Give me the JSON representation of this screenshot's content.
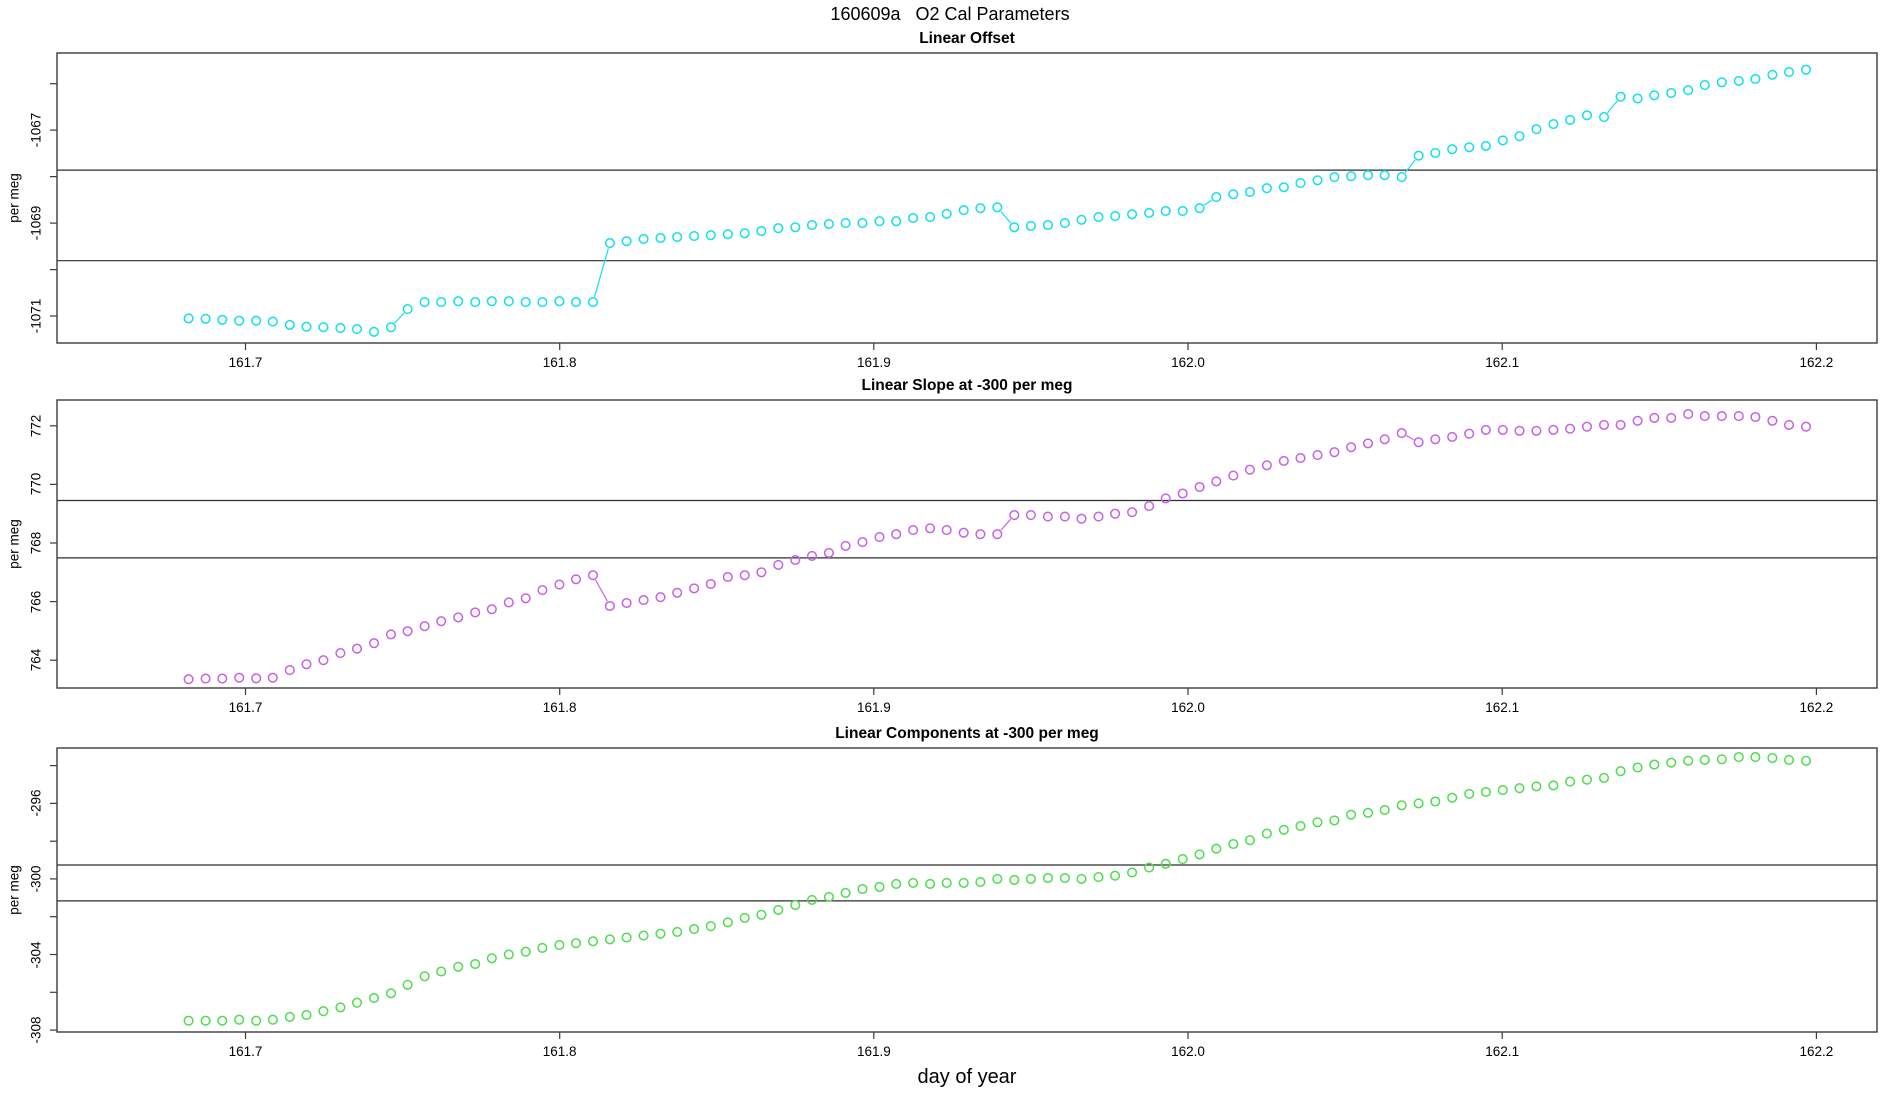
{
  "title": "160609a   O2 Cal Parameters",
  "chart_data": {
    "type": "scatter",
    "xlabel": "day of year",
    "x_tick_values": [
      161.7,
      161.8,
      161.9,
      162.0,
      162.1,
      162.2
    ],
    "x_tick_labels": [
      "161.7",
      "161.8",
      "161.9",
      "162.0",
      "162.1",
      "162.2"
    ],
    "xlim": [
      161.64,
      162.2193
    ],
    "x": [
      161.6819,
      161.6873,
      161.6926,
      161.698,
      161.7034,
      161.7087,
      161.7141,
      161.7194,
      161.7248,
      161.7302,
      161.7355,
      161.7409,
      161.7463,
      161.7516,
      161.757,
      161.7623,
      161.7677,
      161.7731,
      161.7784,
      161.7838,
      161.7892,
      161.7945,
      161.7999,
      161.8052,
      161.8106,
      161.816,
      161.8213,
      161.8267,
      161.8321,
      161.8374,
      161.8428,
      161.8481,
      161.8535,
      161.8589,
      161.8642,
      161.8696,
      161.875,
      161.8803,
      161.8857,
      161.891,
      161.8964,
      161.9018,
      161.9071,
      161.9125,
      161.9179,
      161.9232,
      161.9286,
      161.9339,
      161.9393,
      161.9447,
      161.95,
      161.9554,
      161.9608,
      161.9661,
      161.9715,
      161.9768,
      161.9822,
      161.9876,
      161.9929,
      161.9983,
      162.0037,
      162.009,
      162.0144,
      162.0197,
      162.0251,
      162.0305,
      162.0358,
      162.0412,
      162.0466,
      162.0519,
      162.0573,
      162.0626,
      162.068,
      162.0734,
      162.0787,
      162.0841,
      162.0895,
      162.0948,
      162.1002,
      162.1055,
      162.1109,
      162.1163,
      162.1216,
      162.127,
      162.1324,
      162.1377,
      162.1431,
      162.1484,
      162.1538,
      162.1592,
      162.1645,
      162.1699,
      162.1753,
      162.1806,
      162.186,
      162.1913,
      162.1967
    ],
    "panels": [
      {
        "title": "Linear Offset",
        "ylabel": "per meg",
        "color": "#10dff0",
        "ylim": [
          -1071.58,
          -1065.34
        ],
        "ytick_values": [
          -1066,
          -1067,
          -1068,
          -1069,
          -1070,
          -1071
        ],
        "ytick_labels": [
          "",
          "-1067",
          "",
          "-1069",
          "",
          "-1071"
        ],
        "hlines": [
          -1067.86,
          -1069.81
        ],
        "values": [
          -1071.05,
          -1071.06,
          -1071.08,
          -1071.1,
          -1071.1,
          -1071.12,
          -1071.19,
          -1071.23,
          -1071.24,
          -1071.26,
          -1071.28,
          -1071.34,
          -1071.24,
          -1070.85,
          -1070.7,
          -1070.7,
          -1070.68,
          -1070.7,
          -1070.68,
          -1070.68,
          -1070.7,
          -1070.7,
          -1070.68,
          -1070.7,
          -1070.7,
          -1069.43,
          -1069.39,
          -1069.34,
          -1069.32,
          -1069.3,
          -1069.28,
          -1069.26,
          -1069.24,
          -1069.22,
          -1069.17,
          -1069.11,
          -1069.09,
          -1069.04,
          -1069.02,
          -1069.0,
          -1069.0,
          -1068.96,
          -1068.96,
          -1068.89,
          -1068.87,
          -1068.8,
          -1068.72,
          -1068.68,
          -1068.66,
          -1069.09,
          -1069.06,
          -1069.04,
          -1069.0,
          -1068.93,
          -1068.87,
          -1068.85,
          -1068.81,
          -1068.78,
          -1068.74,
          -1068.74,
          -1068.68,
          -1068.44,
          -1068.38,
          -1068.33,
          -1068.25,
          -1068.23,
          -1068.14,
          -1068.08,
          -1068.01,
          -1067.99,
          -1067.97,
          -1067.97,
          -1068.01,
          -1067.55,
          -1067.49,
          -1067.41,
          -1067.37,
          -1067.34,
          -1067.22,
          -1067.13,
          -1066.98,
          -1066.87,
          -1066.78,
          -1066.68,
          -1066.72,
          -1066.28,
          -1066.32,
          -1066.25,
          -1066.2,
          -1066.14,
          -1066.03,
          -1065.97,
          -1065.94,
          -1065.9,
          -1065.81,
          -1065.75,
          -1065.7
        ]
      },
      {
        "title": "Linear Slope at -300 per meg",
        "ylabel": "per meg",
        "color": "#c95fe8",
        "ylim": [
          763.05,
          772.88
        ],
        "ytick_values": [
          764,
          766,
          768,
          770,
          772
        ],
        "ytick_labels": [
          "764",
          "766",
          "768",
          "770",
          "772"
        ],
        "hlines": [
          769.45,
          767.49
        ],
        "values": [
          763.35,
          763.37,
          763.37,
          763.4,
          763.38,
          763.4,
          763.66,
          763.86,
          764.0,
          764.24,
          764.39,
          764.58,
          764.88,
          764.99,
          765.16,
          765.33,
          765.46,
          765.63,
          765.74,
          765.97,
          766.11,
          766.39,
          766.58,
          766.76,
          766.9,
          765.85,
          765.95,
          766.05,
          766.15,
          766.3,
          766.45,
          766.6,
          766.84,
          766.9,
          767.0,
          767.25,
          767.42,
          767.56,
          767.66,
          767.9,
          768.03,
          768.2,
          768.3,
          768.44,
          768.5,
          768.44,
          768.35,
          768.3,
          768.3,
          768.95,
          768.95,
          768.9,
          768.9,
          768.83,
          768.9,
          769.0,
          769.05,
          769.26,
          769.52,
          769.69,
          769.91,
          770.1,
          770.3,
          770.5,
          770.65,
          770.8,
          770.9,
          771.0,
          771.1,
          771.27,
          771.4,
          771.54,
          771.75,
          771.44,
          771.54,
          771.62,
          771.73,
          771.86,
          771.86,
          771.83,
          771.83,
          771.86,
          771.9,
          771.97,
          772.03,
          772.03,
          772.17,
          772.27,
          772.27,
          772.4,
          772.33,
          772.33,
          772.33,
          772.3,
          772.17,
          772.03,
          771.97
        ]
      },
      {
        "title": "Linear Components at -300 per meg",
        "ylabel": "per meg",
        "color": "#4cde4c",
        "ylim": [
          -308.1,
          -293.07
        ],
        "ytick_values": [
          -294,
          -296,
          -298,
          -300,
          -302,
          -304,
          -306,
          -308
        ],
        "ytick_labels": [
          "",
          "-296",
          "",
          "-300",
          "",
          "-304",
          "",
          "-308"
        ],
        "hlines": [
          -299.26,
          -301.16
        ],
        "values": [
          -307.5,
          -307.5,
          -307.5,
          -307.45,
          -307.5,
          -307.45,
          -307.3,
          -307.2,
          -307.0,
          -306.8,
          -306.55,
          -306.3,
          -306.05,
          -305.6,
          -305.15,
          -304.9,
          -304.65,
          -304.5,
          -304.2,
          -304.0,
          -303.85,
          -303.65,
          -303.5,
          -303.4,
          -303.3,
          -303.2,
          -303.1,
          -303.0,
          -302.9,
          -302.8,
          -302.65,
          -302.5,
          -302.3,
          -302.06,
          -301.9,
          -301.64,
          -301.38,
          -301.11,
          -300.95,
          -300.74,
          -300.53,
          -300.42,
          -300.26,
          -300.21,
          -300.26,
          -300.21,
          -300.21,
          -300.16,
          -300.0,
          -300.05,
          -300.0,
          -299.95,
          -299.95,
          -300.0,
          -299.9,
          -299.83,
          -299.66,
          -299.4,
          -299.2,
          -298.95,
          -298.7,
          -298.4,
          -298.15,
          -297.95,
          -297.6,
          -297.4,
          -297.2,
          -297.0,
          -296.9,
          -296.6,
          -296.5,
          -296.35,
          -296.1,
          -296.0,
          -295.9,
          -295.7,
          -295.5,
          -295.4,
          -295.3,
          -295.2,
          -295.1,
          -295.05,
          -294.85,
          -294.75,
          -294.65,
          -294.3,
          -294.1,
          -293.95,
          -293.85,
          -293.75,
          -293.7,
          -293.67,
          -293.55,
          -293.55,
          -293.6,
          -293.7,
          -293.75
        ]
      }
    ],
    "frame_color": "#3c3c3c",
    "hline_color": "#2e2e2e",
    "legend": "none",
    "grid": "off"
  }
}
